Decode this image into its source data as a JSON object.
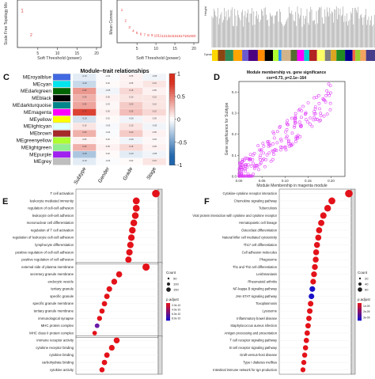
{
  "panels": {
    "A": {
      "ylabel": "Scale Free Topology Mo",
      "xlabel": "Soft Threshold (power)",
      "ticks": [
        "5",
        "10",
        "15",
        "20"
      ],
      "marker_color": "#e53935"
    },
    "B": {
      "ylabel": "Mean Connec",
      "xlabel": "Soft Threshold (power)",
      "ticks": [
        "5",
        "10",
        "15",
        "20"
      ],
      "marker_color": "#e53935"
    },
    "dendro": {
      "ylabel": "Height",
      "row_label": "Dynamic Tree Cut"
    },
    "C": {
      "letter": "C",
      "title": "Module–trait relationships",
      "modules": [
        "MEroyalblue",
        "MEcyan",
        "MEdarkgreen",
        "MEblack",
        "MEdarkturquoise",
        "MEmagenta",
        "MEyellow",
        "MElightcyan",
        "MEbrown",
        "MEgreenyellow",
        "MElightgreen",
        "MEpurple",
        "MEgrey"
      ],
      "module_colors": [
        "#4169e1",
        "#00e5ee",
        "#006400",
        "#000000",
        "#00868b",
        "#ff00ff",
        "#ffff00",
        "#e0ffff",
        "#a52a2a",
        "#adff2f",
        "#90ee90",
        "#a020f0",
        "#bebebe"
      ],
      "traits": [
        "Subtype",
        "Gender",
        "Grade",
        "Stage"
      ],
      "colorbar_ticks": [
        "1",
        "0.5",
        "0",
        "-0.5",
        "-1"
      ],
      "colors": {
        "pos": "#d7301f",
        "neg": "#2166ac",
        "neutral": "#ffffff"
      }
    },
    "D": {
      "letter": "D",
      "title_line1": "Module membership vs. gene significance",
      "title_line2": "cor=0.73, p=2.1e−164",
      "xlabel": "Module Membership in magenta module",
      "ylabel": "Gene significance for Subtype",
      "x_ticks": [
        "0.00",
        "0.05",
        "0.10",
        "0.15",
        "0.20"
      ],
      "y_ticks": [
        "0.0",
        "0.1",
        "0.2",
        "0.3",
        "0.4"
      ],
      "point_color": "#e040fb"
    },
    "E": {
      "letter": "E",
      "terms": [
        "T cell activation",
        "leukocyte mediated immunity",
        "regulation of cell-cell adhesion",
        "leukocyte cell-cell adhesion",
        "mononuclear cell differentiation",
        "regulation of T cell activation",
        "regulation of leukocyte cell-cell adhesion",
        "lymphocyte differentiation",
        "positive regulation of cell-cell adhesion",
        "positive regulation of cell adhesion",
        "external side of plasma membrane",
        "secretory granule membrane",
        "endocytic vesicle",
        "tertiary granule",
        "specific granule",
        "specific granule membrane",
        "tertiary granule membrane",
        "immunological synapse",
        "MHC protein complex",
        "MHC class II protein complex",
        "immune receptor activity",
        "cytokine receptor binding",
        "cytokine binding",
        "carbohydrate binding",
        "cytokine activity"
      ],
      "count_title": "Count",
      "count_ticks": [
        "50",
        "100",
        "150"
      ],
      "p_title": "p.adjust",
      "p_ticks": [
        "2.0e-10",
        "4.0e-10",
        "6.0e-10",
        "8.0e-10"
      ]
    },
    "F": {
      "letter": "F",
      "terms": [
        "Cytokine-cytokine receptor interaction",
        "Chemokine signaling pathway",
        "Tuberculosis",
        "Viral protein interaction with cytokine and cytokine receptor",
        "Hematopoietic cell lineage",
        "Osteoclast differentiation",
        "Natural killer cell mediated cytotoxicity",
        "Th17 cell differentiation",
        "Cell adhesion molecules",
        "Phagosome",
        "Th1 and Th2 cell differentiation",
        "Leishmaniasis",
        "Rheumatoid arthritis",
        "NF-kappa B signaling pathway",
        "JAK-STAT signaling pathway",
        "Toxoplasmosis",
        "Lysosome",
        "Inflammatory bowel disease",
        "Staphylococcus aureus infection",
        "Antigen processing and presentation",
        "T cell receptor signaling pathway",
        "B cell receptor signaling pathway",
        "Graft-versus-host disease",
        "Type I diabetes mellitus",
        "Intestinal immune network for IgA production"
      ],
      "count_title": "Count",
      "count_ticks": [
        "20",
        "40",
        "60"
      ],
      "p_title": "p.adjust",
      "p_ticks": [
        "1e-09",
        "2e-09",
        "3e-09"
      ]
    }
  },
  "chart_data": [
    {
      "type": "scatter",
      "ylabel": "Scale Free Topology Mo",
      "xlabel": "Soft Threshold (power)",
      "x": [
        1
      ],
      "y": [
        0.85
      ]
    },
    {
      "type": "scatter",
      "ylabel": "Mean Connec",
      "xlabel": "Soft Threshold (power)",
      "x": [
        1,
        2,
        3,
        4,
        5,
        6,
        7,
        8,
        9,
        10,
        11,
        12,
        13,
        14,
        15,
        16,
        17,
        18,
        19,
        20
      ],
      "y": [
        0.85,
        0.55,
        0.35,
        0.25,
        0.19,
        0.16,
        0.14,
        0.13,
        0.12,
        0.115,
        0.11,
        0.105,
        0.1,
        0.1,
        0.1,
        0.1,
        0.1,
        0.1,
        0.1,
        0.1
      ]
    },
    {
      "type": "heatmap",
      "title": "Module–trait relationships",
      "rows": [
        "MEroyalblue",
        "MEcyan",
        "MEdarkgreen",
        "MEblack",
        "MEdarkturquoise",
        "MEmagenta",
        "MEyellow",
        "MElightcyan",
        "MEbrown",
        "MEgreenyellow",
        "MElightgreen",
        "MEpurple",
        "MEgrey"
      ],
      "columns": [
        "Subtype",
        "Gender",
        "Grade",
        "Stage"
      ],
      "values": [
        [
          -0.1,
          -0.02,
          0.05,
          -0.05
        ],
        [
          -0.2,
          0.02,
          0.05,
          0.1
        ],
        [
          0.4,
          -0.05,
          0.15,
          0.05
        ],
        [
          0.3,
          0.05,
          0.1,
          0.1
        ],
        [
          0.35,
          0.03,
          0.2,
          0.1
        ],
        [
          0.73,
          0.05,
          0.25,
          0.15
        ],
        [
          -0.15,
          0.02,
          -0.05,
          0.05
        ],
        [
          0.1,
          -0.03,
          0.1,
          -0.05
        ],
        [
          0.3,
          -0.02,
          0.2,
          0.05
        ],
        [
          0.05,
          0.02,
          -0.05,
          0.03
        ],
        [
          0.3,
          0.05,
          0.15,
          0.05
        ],
        [
          -0.3,
          0.02,
          -0.1,
          -0.05
        ],
        [
          -0.1,
          -0.02,
          0.02,
          0.1
        ]
      ],
      "zlim": [
        -1,
        1
      ]
    },
    {
      "type": "scatter",
      "title": "Module membership vs. gene significance",
      "xlabel": "Module Membership in magenta module",
      "ylabel": "Gene significance for Subtype",
      "xlim": [
        0,
        0.23
      ],
      "ylim": [
        0,
        0.45
      ],
      "trend": [
        [
          0.01,
          0.02
        ],
        [
          0.2,
          0.38
        ]
      ],
      "point_count": 220
    },
    {
      "type": "scatter",
      "categories": [
        "T cell activation",
        "leukocyte mediated immunity",
        "regulation of cell-cell adhesion",
        "leukocyte cell-cell adhesion",
        "mononuclear cell differentiation",
        "regulation of T cell activation",
        "regulation of leukocyte cell-cell adhesion",
        "lymphocyte differentiation",
        "positive regulation of cell-cell adhesion",
        "positive regulation of cell adhesion",
        "external side of plasma membrane",
        "secretory granule membrane",
        "endocytic vesicle",
        "tertiary granule",
        "specific granule",
        "specific granule membrane",
        "tertiary granule membrane",
        "immunological synapse",
        "MHC protein complex",
        "MHC class II protein complex",
        "immune receptor activity",
        "cytokine receptor binding",
        "cytokine binding",
        "carbohydrate binding",
        "cytokine activity"
      ],
      "gene_ratio": [
        0.16,
        0.12,
        0.12,
        0.118,
        0.115,
        0.112,
        0.11,
        0.108,
        0.106,
        0.104,
        0.14,
        0.085,
        0.075,
        0.065,
        0.06,
        0.055,
        0.05,
        0.045,
        0.04,
        0.035,
        0.08,
        0.07,
        0.06,
        0.055,
        0.05
      ],
      "count": [
        160,
        120,
        115,
        112,
        110,
        105,
        100,
        98,
        95,
        92,
        140,
        80,
        70,
        60,
        55,
        50,
        45,
        40,
        30,
        25,
        75,
        65,
        55,
        50,
        45
      ],
      "p_adjust": [
        1e-12,
        1e-12,
        1e-12,
        1e-12,
        1e-12,
        1e-12,
        1e-12,
        1e-12,
        1e-12,
        1e-12,
        1e-12,
        1e-11,
        1e-11,
        1e-11,
        1e-11,
        1e-11,
        1e-11,
        1e-11,
        8e-10,
        1e-10,
        1e-11,
        1e-11,
        1e-11,
        1e-11,
        1e-11
      ]
    },
    {
      "type": "scatter",
      "categories": [
        "Cytokine-cytokine receptor interaction",
        "Chemokine signaling pathway",
        "Tuberculosis",
        "Viral protein interaction with cytokine and cytokine receptor",
        "Hematopoietic cell lineage",
        "Osteoclast differentiation",
        "Natural killer cell mediated cytotoxicity",
        "Th17 cell differentiation",
        "Cell adhesion molecules",
        "Phagosome",
        "Th1 and Th2 cell differentiation",
        "Leishmaniasis",
        "Rheumatoid arthritis",
        "NF-kappa B signaling pathway",
        "JAK-STAT signaling pathway",
        "Toxoplasmosis",
        "Lysosome",
        "Inflammatory bowel disease",
        "Staphylococcus aureus infection",
        "Antigen processing and presentation",
        "T cell receptor signaling pathway",
        "B cell receptor signaling pathway",
        "Graft-versus-host disease",
        "Type I diabetes mellitus",
        "Intestinal immune network for IgA production"
      ],
      "gene_ratio": [
        0.16,
        0.12,
        0.11,
        0.1,
        0.095,
        0.09,
        0.088,
        0.085,
        0.083,
        0.082,
        0.08,
        0.078,
        0.076,
        0.074,
        0.072,
        0.07,
        0.068,
        0.066,
        0.064,
        0.062,
        0.06,
        0.058,
        0.056,
        0.054,
        0.052
      ],
      "count": [
        60,
        45,
        40,
        35,
        32,
        30,
        29,
        28,
        27,
        27,
        26,
        25,
        24,
        23,
        22,
        22,
        21,
        20,
        20,
        19,
        18,
        17,
        16,
        15,
        14
      ],
      "p_adjust": [
        1e-12,
        1e-12,
        1e-12,
        1e-12,
        1e-12,
        1e-12,
        1e-12,
        1e-12,
        1e-12,
        1e-12,
        1e-12,
        1e-12,
        1e-12,
        2e-09,
        3e-09,
        1e-12,
        1e-12,
        1e-12,
        1e-12,
        1e-12,
        1e-12,
        1e-12,
        1e-12,
        1e-12,
        1e-12
      ]
    }
  ]
}
